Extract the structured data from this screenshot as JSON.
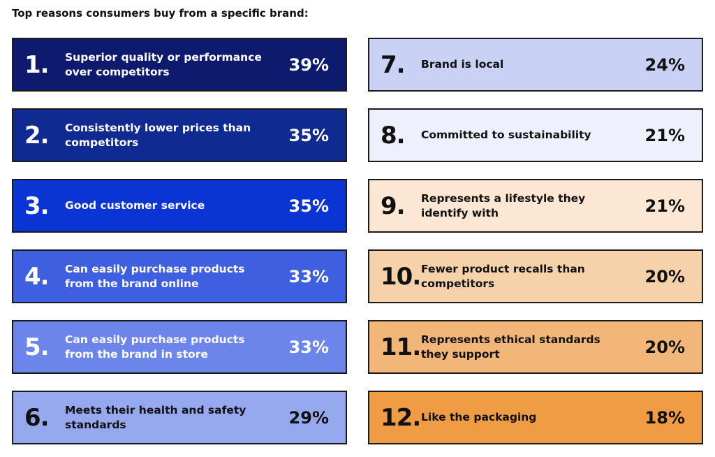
{
  "title": "Top reasons consumers buy from a specific brand:",
  "items": [
    {
      "rank": "1.",
      "text": "Superior quality or performance over competitors",
      "percent": "39%"
    },
    {
      "rank": "2.",
      "text": "Consistently lower prices than competitors",
      "percent": "35%"
    },
    {
      "rank": "3.",
      "text": "Good customer service",
      "percent": "35%"
    },
    {
      "rank": "4.",
      "text": "Can easily purchase products from the brand online",
      "percent": "33%"
    },
    {
      "rank": "5.",
      "text": "Can easily purchase products from the brand in store",
      "percent": "33%"
    },
    {
      "rank": "6.",
      "text": "Meets their health and safety standards",
      "percent": "29%"
    },
    {
      "rank": "7.",
      "text": "Brand is local",
      "percent": "24%"
    },
    {
      "rank": "8.",
      "text": "Committed to sustainability",
      "percent": "21%"
    },
    {
      "rank": "9.",
      "text": "Represents a lifestyle they identify with",
      "percent": "21%"
    },
    {
      "rank": "10.",
      "text": "Fewer product recalls than competitors",
      "percent": "20%"
    },
    {
      "rank": "11.",
      "text": "Represents ethical standards they support",
      "percent": "20%"
    },
    {
      "rank": "12.",
      "text": "Like the packaging",
      "percent": "18%"
    }
  ]
}
